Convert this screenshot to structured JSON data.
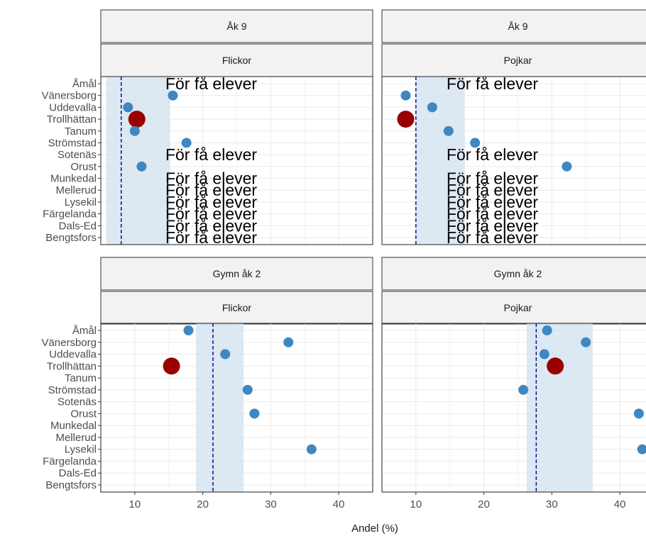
{
  "chart_data": {
    "type": "scatter",
    "xlabel": "Andel (%)",
    "xlim": [
      5,
      45
    ],
    "xticks": [
      10,
      20,
      30,
      40
    ],
    "categories": [
      "Åmål",
      "Vänersborg",
      "Uddevalla",
      "Trollhättan",
      "Tanum",
      "Strömstad",
      "Sotenäs",
      "Orust",
      "Munkedal",
      "Mellerud",
      "Lysekil",
      "Färgelanda",
      "Dals-Ed",
      "Bengtsfors"
    ],
    "highlight": "Trollhättan",
    "note_text": "För få elever",
    "grid": true,
    "colors": {
      "point": "#3f87c1",
      "highlight": "#990000",
      "band": "#d6e4f0",
      "mean_line": "#00008b",
      "strip_fill": "#f2f2f2"
    },
    "panels": [
      {
        "grade": "Åk 9",
        "sex": "Flickor",
        "band": [
          5.8,
          15.2
        ],
        "mean": 8.0,
        "points": [
          {
            "municipality": "Vänersborg",
            "value": 15.6
          },
          {
            "municipality": "Uddevalla",
            "value": 9.0
          },
          {
            "municipality": "Trollhättan",
            "value": 10.3
          },
          {
            "municipality": "Tanum",
            "value": 10.0
          },
          {
            "municipality": "Strömstad",
            "value": 17.6
          },
          {
            "municipality": "Orust",
            "value": 11.0
          }
        ],
        "notes": [
          "Åmål",
          "Sotenäs",
          "Munkedal",
          "Mellerud",
          "Lysekil",
          "Färgelanda",
          "Dals-Ed",
          "Bengtsfors"
        ]
      },
      {
        "grade": "Åk 9",
        "sex": "Pojkar",
        "band": [
          10.0,
          17.2
        ],
        "mean": 10.0,
        "points": [
          {
            "municipality": "Vänersborg",
            "value": 8.5
          },
          {
            "municipality": "Uddevalla",
            "value": 12.4
          },
          {
            "municipality": "Trollhättan",
            "value": 8.5
          },
          {
            "municipality": "Tanum",
            "value": 14.8
          },
          {
            "municipality": "Strömstad",
            "value": 18.7
          },
          {
            "municipality": "Orust",
            "value": 32.2
          }
        ],
        "notes": [
          "Åmål",
          "Sotenäs",
          "Munkedal",
          "Mellerud",
          "Lysekil",
          "Färgelanda",
          "Dals-Ed",
          "Bengtsfors"
        ]
      },
      {
        "grade": "Gymn åk 2",
        "sex": "Flickor",
        "band": [
          19.0,
          26.0
        ],
        "mean": 21.5,
        "points": [
          {
            "municipality": "Åmål",
            "value": 17.9
          },
          {
            "municipality": "Vänersborg",
            "value": 32.6
          },
          {
            "municipality": "Uddevalla",
            "value": 23.3
          },
          {
            "municipality": "Trollhättan",
            "value": 15.4
          },
          {
            "municipality": "Strömstad",
            "value": 26.6
          },
          {
            "municipality": "Orust",
            "value": 27.6
          },
          {
            "municipality": "Lysekil",
            "value": 36.0
          }
        ],
        "notes": []
      },
      {
        "grade": "Gymn åk 2",
        "sex": "Pojkar",
        "band": [
          26.3,
          36.0
        ],
        "mean": 27.7,
        "points": [
          {
            "municipality": "Åmål",
            "value": 29.3
          },
          {
            "municipality": "Vänersborg",
            "value": 35.0
          },
          {
            "municipality": "Uddevalla",
            "value": 28.9
          },
          {
            "municipality": "Trollhättan",
            "value": 30.5
          },
          {
            "municipality": "Strömstad",
            "value": 25.8
          },
          {
            "municipality": "Orust",
            "value": 42.8
          },
          {
            "municipality": "Lysekil",
            "value": 43.3
          }
        ],
        "notes": []
      }
    ]
  }
}
